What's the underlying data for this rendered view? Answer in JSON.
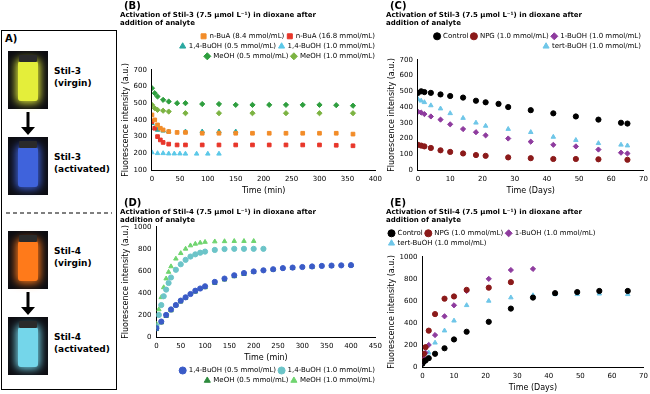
{
  "panel_a": {
    "label": "A)",
    "vials": [
      {
        "label": [
          "Stil-3",
          "(virgin)"
        ],
        "color": "#e4ee3a"
      },
      {
        "label": [
          "Stil-3",
          "(activated)"
        ],
        "color": "#3f63dc"
      },
      {
        "label": [
          "Stil-4",
          "(virgin)"
        ],
        "color": "#ff7a1a"
      },
      {
        "label": [
          "Stil-4",
          "(activated)"
        ],
        "color": "#74d6ea"
      }
    ]
  },
  "chart_data": [
    {
      "type": "scatter",
      "panel_label": "(B)",
      "title": [
        "Activation of Stil-3 (7.5 µmol L⁻¹) in dioxane after",
        "addition of analyte"
      ],
      "x_label": "Time (min)",
      "y_label": "Fluorescence intensity (a.u.)",
      "xlim": [
        0,
        400
      ],
      "xticks": [
        0,
        50,
        100,
        150,
        200,
        250,
        300,
        350,
        400
      ],
      "ylim": [
        100,
        700
      ],
      "yticks": [
        100,
        200,
        300,
        400,
        500,
        600,
        700
      ],
      "grid": false,
      "legend": "top right",
      "series": [
        {
          "name": "n-BuA (8.4 mmol/mL)",
          "color": "#f28c28",
          "marker": "square",
          "x": [
            0,
            5,
            10,
            15,
            20,
            30,
            45,
            60,
            90,
            120,
            150,
            180,
            210,
            240,
            270,
            300,
            330,
            360
          ],
          "values": [
            430,
            400,
            370,
            350,
            340,
            330,
            325,
            325,
            320,
            320,
            320,
            320,
            320,
            320,
            320,
            320,
            320,
            315
          ]
        },
        {
          "name": "n-BuA (16.8 mmol/mL)",
          "color": "#e8362a",
          "marker": "square",
          "x": [
            0,
            5,
            10,
            15,
            20,
            30,
            45,
            60,
            90,
            120,
            150,
            180,
            210,
            240,
            270,
            300,
            330,
            360
          ],
          "values": [
            390,
            350,
            300,
            280,
            265,
            255,
            250,
            250,
            250,
            250,
            250,
            250,
            250,
            250,
            250,
            250,
            248,
            245
          ]
        },
        {
          "name": "1,4-BuOH (0.5 mmol/mL)",
          "color": "#2aa8a0",
          "marker": "triangle",
          "x": [
            0,
            5,
            10,
            20,
            30,
            60,
            90,
            120,
            150
          ],
          "values": [
            380,
            350,
            340,
            335,
            330,
            330,
            330,
            330,
            330
          ]
        },
        {
          "name": "1,4-BuOH (1.0 mmol/mL)",
          "color": "#5bc8e8",
          "marker": "triangle",
          "x": [
            0,
            10,
            20,
            30,
            40,
            50,
            60,
            80,
            100,
            120
          ],
          "values": [
            205,
            200,
            200,
            198,
            198,
            198,
            197,
            197,
            197,
            197
          ]
        },
        {
          "name": "MeOH (0.5 mmol/mL)",
          "color": "#2e9e3e",
          "marker": "diamond",
          "x": [
            0,
            5,
            10,
            20,
            30,
            45,
            60,
            90,
            120,
            150,
            180,
            210,
            240,
            270,
            300,
            330,
            360
          ],
          "values": [
            590,
            560,
            540,
            520,
            510,
            500,
            500,
            495,
            495,
            490,
            490,
            490,
            490,
            490,
            490,
            488,
            485
          ]
        },
        {
          "name": "MeOH (1.0 mmol/mL)",
          "color": "#7cb342",
          "marker": "diamond",
          "x": [
            0,
            5,
            10,
            20,
            30,
            60,
            120,
            180,
            240,
            300,
            360
          ],
          "values": [
            490,
            470,
            460,
            455,
            450,
            440,
            440,
            440,
            440,
            440,
            440
          ]
        }
      ]
    },
    {
      "type": "scatter",
      "panel_label": "(C)",
      "title": [
        "Activation of Stil-3 (7.5 µmol L⁻¹) in dioxane after",
        "addition of analyte"
      ],
      "x_label": "Time (Days)",
      "y_label": "Fluorescence intensity (a.u.)",
      "xlim": [
        0,
        70
      ],
      "xticks": [
        0,
        10,
        20,
        30,
        40,
        50,
        60,
        70
      ],
      "ylim": [
        0,
        700
      ],
      "yticks": [
        0,
        100,
        200,
        300,
        400,
        500,
        600,
        700
      ],
      "grid": false,
      "legend": "top right",
      "series": [
        {
          "name": "Control",
          "color": "#000000",
          "marker": "circle",
          "x": [
            0,
            1,
            2,
            4,
            7,
            10,
            14,
            18,
            21,
            25,
            28,
            35,
            42,
            49,
            56,
            63,
            65
          ],
          "values": [
            490,
            500,
            495,
            490,
            480,
            470,
            460,
            440,
            430,
            420,
            400,
            380,
            360,
            340,
            320,
            300,
            295
          ]
        },
        {
          "name": "NPG (1.0 mmol/mL)",
          "color": "#8b1a1a",
          "marker": "circle",
          "x": [
            0,
            1,
            2,
            4,
            7,
            10,
            14,
            18,
            21,
            28,
            35,
            42,
            49,
            56,
            65
          ],
          "values": [
            160,
            155,
            150,
            140,
            125,
            115,
            105,
            95,
            90,
            80,
            75,
            70,
            70,
            68,
            65
          ]
        },
        {
          "name": "1-BuOH (1.0 mmol/mL)",
          "color": "#8e3b9e",
          "marker": "diamond",
          "x": [
            0,
            1,
            2,
            4,
            7,
            10,
            14,
            18,
            21,
            28,
            35,
            42,
            49,
            56,
            63,
            65
          ],
          "values": [
            370,
            365,
            355,
            340,
            320,
            290,
            260,
            240,
            220,
            200,
            180,
            160,
            150,
            130,
            110,
            105
          ]
        },
        {
          "name": "tert-BuOH (1.0 mmol/mL)",
          "color": "#6ec6e8",
          "marker": "triangle",
          "x": [
            0,
            1,
            2,
            4,
            7,
            10,
            14,
            18,
            21,
            28,
            35,
            42,
            49,
            56,
            63,
            65
          ],
          "values": [
            450,
            440,
            430,
            410,
            390,
            360,
            330,
            300,
            280,
            260,
            240,
            210,
            190,
            170,
            160,
            155
          ]
        }
      ]
    },
    {
      "type": "scatter",
      "panel_label": "(D)",
      "title": [
        "Activation of Stil-4 (7.5 µmol L⁻¹) in dioxane after",
        "addition of analyte"
      ],
      "x_label": "Time (min)",
      "y_label": "Fluorescence intensity (a.u.)",
      "xlim": [
        0,
        450
      ],
      "xticks": [
        0,
        50,
        100,
        150,
        200,
        250,
        300,
        350,
        400,
        450
      ],
      "ylim": [
        0,
        1000
      ],
      "yticks": [
        0,
        200,
        400,
        600,
        800,
        1000
      ],
      "grid": false,
      "legend": "bottom right",
      "series": [
        {
          "name": "1,4-BuOH (0.5 mmol/mL)",
          "color": "#3a5bc7",
          "marker": "circle",
          "x": [
            0,
            10,
            20,
            30,
            40,
            50,
            60,
            70,
            80,
            90,
            100,
            120,
            140,
            160,
            180,
            200,
            220,
            240,
            260,
            280,
            300,
            320,
            340,
            360,
            380,
            400
          ],
          "values": [
            80,
            140,
            200,
            250,
            290,
            330,
            360,
            390,
            420,
            440,
            460,
            500,
            530,
            560,
            580,
            595,
            605,
            615,
            625,
            630,
            635,
            640,
            645,
            648,
            650,
            652
          ]
        },
        {
          "name": "1,4-BuOH (1.0 mmol/mL)",
          "color": "#6cc4c8",
          "marker": "circle",
          "x": [
            0,
            5,
            10,
            15,
            20,
            25,
            30,
            40,
            50,
            60,
            70,
            80,
            90,
            100,
            120,
            140,
            160,
            180,
            200,
            220
          ],
          "values": [
            100,
            200,
            290,
            370,
            430,
            490,
            540,
            610,
            660,
            700,
            730,
            750,
            765,
            775,
            790,
            798,
            800,
            800,
            800,
            800
          ]
        },
        {
          "name": "MeOH (0.5 mmol/mL)",
          "color": "#2e8b3e",
          "marker": "triangle",
          "x": [
            0,
            10,
            20,
            30,
            40,
            50,
            60,
            80,
            100,
            120,
            140,
            160,
            180,
            200,
            240,
            280,
            320,
            360,
            400
          ],
          "values": [
            70,
            130,
            190,
            240,
            285,
            320,
            355,
            410,
            450,
            490,
            520,
            550,
            570,
            590,
            610,
            625,
            635,
            645,
            650
          ]
        },
        {
          "name": "MeOH (1.0 mmol/mL)",
          "color": "#6fd46f",
          "marker": "triangle",
          "x": [
            0,
            5,
            10,
            15,
            20,
            25,
            30,
            40,
            50,
            60,
            70,
            80,
            90,
            100,
            120,
            140,
            160,
            180,
            200
          ],
          "values": [
            120,
            250,
            360,
            450,
            530,
            590,
            640,
            710,
            760,
            800,
            830,
            845,
            855,
            862,
            866,
            868,
            870,
            870,
            870
          ]
        }
      ]
    },
    {
      "type": "scatter",
      "panel_label": "(E)",
      "title": [
        "Activation of Stil-4 (7.5 µmol L⁻¹) in dioxane after",
        "addition of analyte"
      ],
      "x_label": "Time (Days)",
      "y_label": "Fluorescence intensity (a.u.)",
      "xlim": [
        0,
        70
      ],
      "xticks": [
        0,
        10,
        20,
        30,
        40,
        50,
        60,
        70
      ],
      "ylim": [
        0,
        1000
      ],
      "yticks": [
        0,
        200,
        400,
        600,
        800,
        1000
      ],
      "grid": false,
      "legend": "top left",
      "series": [
        {
          "name": "Control",
          "color": "#000000",
          "marker": "circle",
          "x": [
            0,
            0.5,
            1,
            2,
            4,
            7,
            10,
            14,
            21,
            28,
            35,
            42,
            49,
            56,
            65
          ],
          "values": [
            30,
            50,
            60,
            80,
            120,
            170,
            250,
            320,
            410,
            530,
            630,
            670,
            680,
            690,
            690
          ]
        },
        {
          "name": "NPG (1.0 mmol/mL)",
          "color": "#8b1a1a",
          "marker": "circle",
          "x": [
            0,
            0.5,
            1,
            2,
            4,
            7,
            10,
            14,
            21,
            28
          ],
          "values": [
            60,
            120,
            180,
            330,
            480,
            620,
            640,
            700,
            720,
            770
          ]
        },
        {
          "name": "1-BuOH (1.0 mmol/mL)",
          "color": "#8e3b9e",
          "marker": "diamond",
          "x": [
            0,
            0.5,
            1,
            2,
            4,
            7,
            10,
            14,
            21,
            28,
            35
          ],
          "values": [
            40,
            80,
            130,
            200,
            290,
            460,
            560,
            690,
            800,
            880,
            890
          ]
        },
        {
          "name": "tert-BuOH (1.0 mmol/mL)",
          "color": "#6ec6e8",
          "marker": "triangle",
          "x": [
            0,
            1,
            2,
            4,
            7,
            10,
            14,
            21,
            28,
            35,
            42,
            49,
            56,
            65
          ],
          "values": [
            30,
            70,
            130,
            220,
            330,
            420,
            560,
            600,
            630,
            650,
            660,
            660,
            665,
            660
          ]
        }
      ]
    }
  ]
}
